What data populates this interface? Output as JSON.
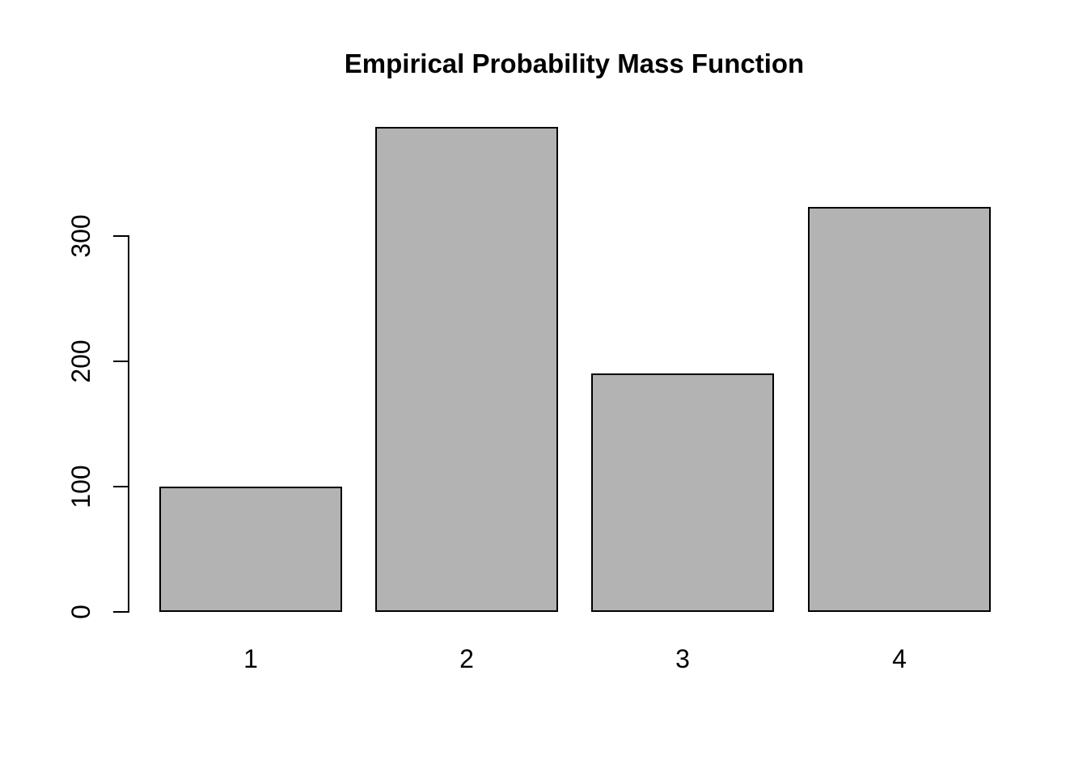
{
  "chart_data": {
    "type": "bar",
    "title": "Empirical Probability Mass Function",
    "categories": [
      "1",
      "2",
      "3",
      "4"
    ],
    "values": [
      100,
      387,
      190,
      323
    ],
    "xlabel": "",
    "ylabel": "",
    "yticks": [
      0,
      100,
      200,
      300
    ],
    "ylim": [
      0,
      390
    ],
    "grid": false,
    "legend_position": "none",
    "colors": {
      "bar_fill": "#b3b3b3",
      "bar_border": "#000000",
      "axis": "#000000",
      "text": "#000000",
      "background": "#ffffff"
    }
  }
}
